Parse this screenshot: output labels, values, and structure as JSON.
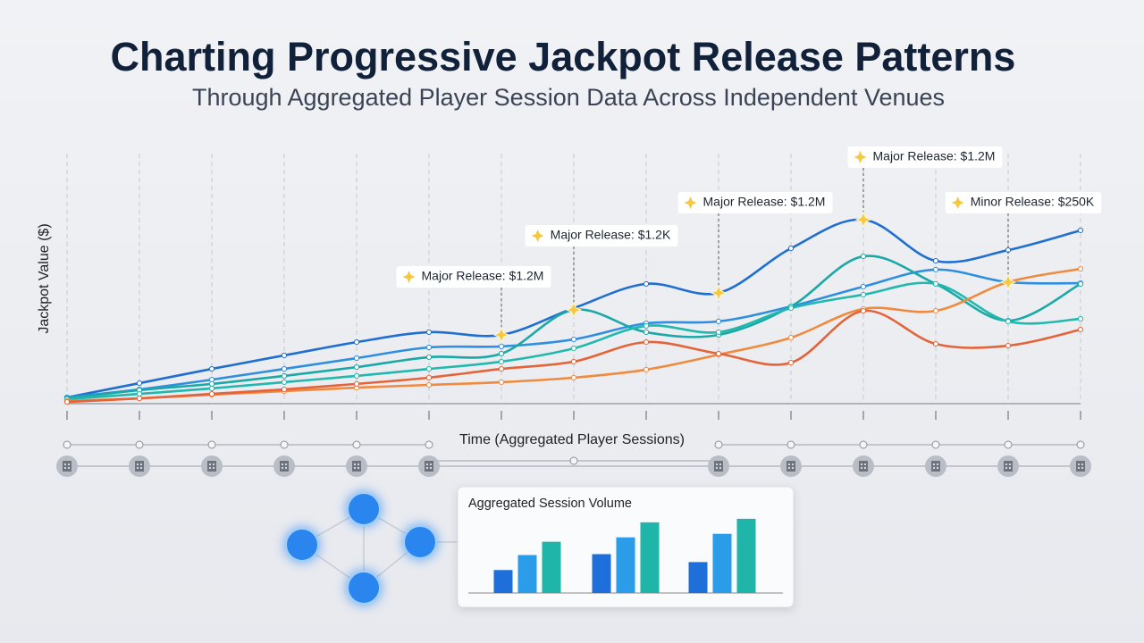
{
  "title": "Charting Progressive Jackpot Release Patterns",
  "subtitle": "Through Aggregated Player Session Data Across Independent Venues",
  "chart_data": [
    {
      "type": "line",
      "y_label": "Jackpot Value ($)",
      "x_label": "Time (Aggregated Player Sessions)",
      "categories": [
        null,
        null,
        null,
        null,
        null,
        null,
        null,
        null,
        null,
        null,
        null,
        null,
        null,
        null,
        null
      ],
      "ylim": [
        0,
        100
      ],
      "grid": true,
      "series": [
        {
          "color": "#1f6fd1",
          "values": [
            2.5,
            8.2,
            13.9,
            19.3,
            24.6,
            28.6,
            27.5,
            38.2,
            47.9,
            44.3,
            62.1,
            73.6,
            57.1,
            61.4,
            69.3
          ]
        },
        {
          "color": "#2e8fe0",
          "values": [
            2.5,
            5.7,
            9.6,
            13.9,
            18.2,
            22.5,
            22.9,
            25.7,
            32.1,
            32.9,
            38.9,
            46.8,
            53.6,
            48.6,
            48.2
          ]
        },
        {
          "color": "#1aa9a6",
          "values": [
            2.1,
            5.4,
            7.9,
            11.1,
            14.6,
            18.6,
            20.0,
            37.5,
            28.6,
            27.5,
            38.9,
            58.9,
            47.9,
            33.2,
            47.9
          ]
        },
        {
          "color": "#22b8ae",
          "values": [
            1.8,
            3.9,
            6.1,
            8.6,
            11.1,
            13.9,
            16.8,
            22.1,
            31.1,
            28.6,
            38.2,
            43.6,
            47.9,
            32.9,
            33.9
          ]
        },
        {
          "color": "#f08a3e",
          "values": [
            1.1,
            2.1,
            3.6,
            5.0,
            6.4,
            7.5,
            8.6,
            10.4,
            13.6,
            19.6,
            26.4,
            37.9,
            37.1,
            48.6,
            53.9
          ]
        },
        {
          "color": "#e4643a",
          "values": [
            0.7,
            2.1,
            3.9,
            5.7,
            7.9,
            10.4,
            13.9,
            16.8,
            24.6,
            20.0,
            16.4,
            37.1,
            23.9,
            23.2,
            29.6
          ]
        }
      ],
      "annotations": [
        "Major Release: $1.2M",
        "Major Release: $1.2K",
        "Major Release: $1.2M",
        "Major Release: $1.2M",
        "Minor Release: $250K"
      ]
    },
    {
      "type": "bar",
      "title": "Aggregated Session Volume",
      "categories": [
        null,
        null,
        null
      ],
      "ylim": [
        0,
        90
      ],
      "series": [
        {
          "color": "#1e6fd9",
          "values": [
            26,
            44,
            35
          ]
        },
        {
          "color": "#2b9ce8",
          "values": [
            43,
            63,
            67
          ]
        },
        {
          "color": "#1fb5a8",
          "values": [
            58,
            80,
            84
          ]
        }
      ]
    }
  ]
}
